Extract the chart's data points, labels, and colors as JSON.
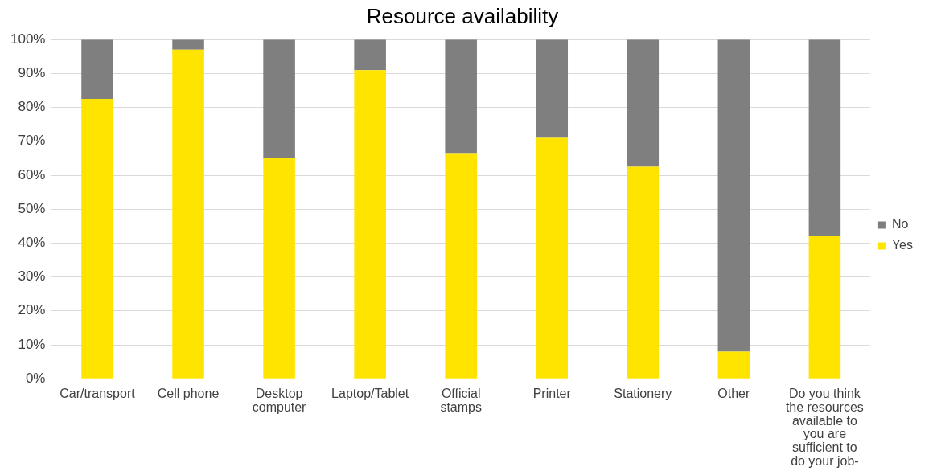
{
  "chart_data": {
    "type": "bar",
    "title": "Resource availability",
    "stacked": true,
    "categories": [
      "Car/transport",
      "Cell phone",
      "Desktop computer",
      "Laptop/Tablet",
      "Official stamps",
      "Printer",
      "Stationery",
      "Other",
      "Do you think the resources available to you are sufficient to do your job-"
    ],
    "series": [
      {
        "name": "Yes",
        "color": "#ffe400",
        "values": [
          82.5,
          97,
          65,
          91,
          66.5,
          71,
          62.5,
          8,
          42
        ]
      },
      {
        "name": "No",
        "color": "#7f7f7f",
        "values": [
          17.5,
          3,
          35,
          9,
          33.5,
          29,
          37.5,
          92,
          58
        ]
      }
    ],
    "ylim": [
      0,
      100
    ],
    "yticks": [
      {
        "value": 0,
        "label": "0%"
      },
      {
        "value": 10,
        "label": "10%"
      },
      {
        "value": 20,
        "label": "20%"
      },
      {
        "value": 30,
        "label": "30%"
      },
      {
        "value": 40,
        "label": "40%"
      },
      {
        "value": 50,
        "label": "50%"
      },
      {
        "value": 60,
        "label": "60%"
      },
      {
        "value": 70,
        "label": "70%"
      },
      {
        "value": 80,
        "label": "80%"
      },
      {
        "value": 90,
        "label": "90%"
      },
      {
        "value": 100,
        "label": "100%"
      }
    ],
    "grid": "y",
    "legend": "right"
  }
}
